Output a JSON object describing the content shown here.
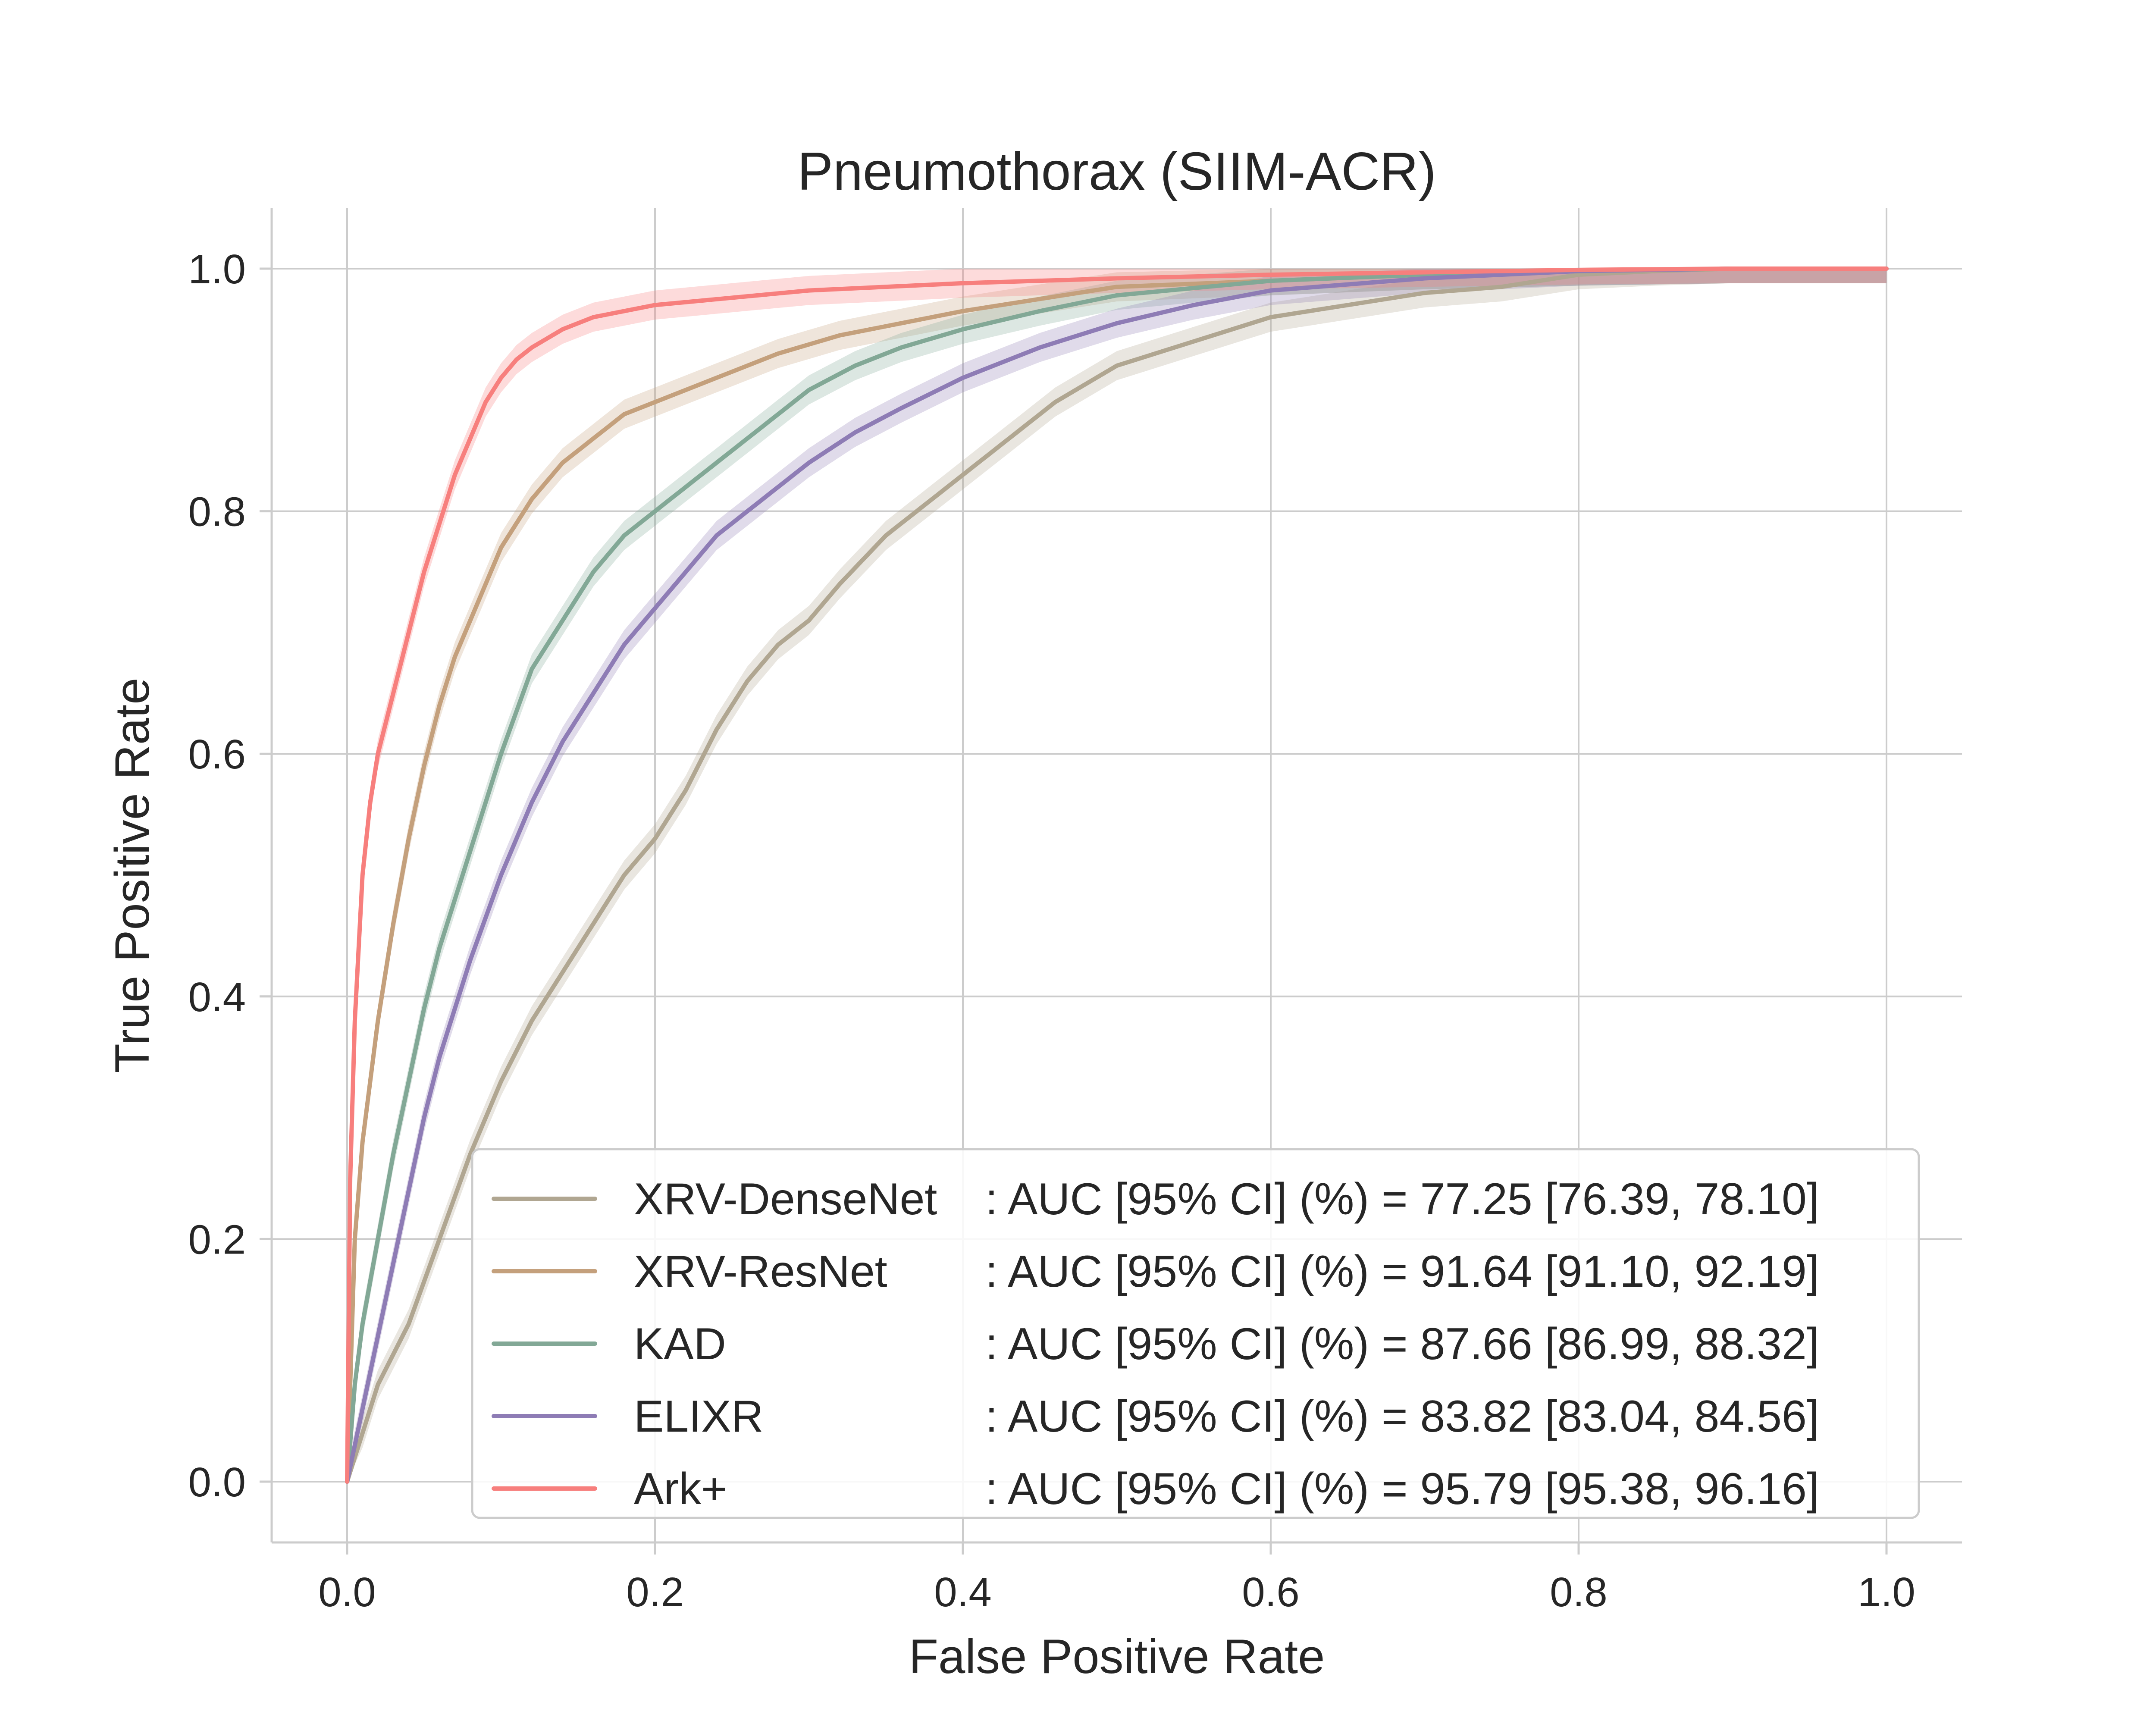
{
  "chart_data": {
    "type": "line",
    "title": "Pneumothorax (SIIM-ACR)",
    "xlabel": "False Positive Rate",
    "ylabel": "True Positive Rate",
    "xlim": [
      -0.05,
      1.05
    ],
    "ylim": [
      -0.05,
      1.05
    ],
    "xticks": [
      "0.0",
      "0.2",
      "0.4",
      "0.6",
      "0.8",
      "1.0"
    ],
    "yticks": [
      "0.0",
      "0.2",
      "0.4",
      "0.6",
      "0.8",
      "1.0"
    ],
    "grid": true,
    "legend_position": "lower-right",
    "series": [
      {
        "name": "XRV-DenseNet",
        "metric": ": AUC [95% CI] (%) = 77.25 [76.39, 78.10]",
        "color": "#b0a691",
        "x": [
          0,
          0.01,
          0.02,
          0.04,
          0.06,
          0.08,
          0.1,
          0.12,
          0.14,
          0.16,
          0.18,
          0.2,
          0.22,
          0.24,
          0.26,
          0.28,
          0.3,
          0.32,
          0.35,
          0.38,
          0.4,
          0.43,
          0.46,
          0.5,
          0.55,
          0.6,
          0.65,
          0.7,
          0.75,
          0.8,
          0.85,
          0.9,
          0.95,
          1.0
        ],
        "y": [
          0,
          0.04,
          0.08,
          0.13,
          0.2,
          0.27,
          0.33,
          0.38,
          0.42,
          0.46,
          0.5,
          0.53,
          0.57,
          0.62,
          0.66,
          0.69,
          0.71,
          0.74,
          0.78,
          0.81,
          0.83,
          0.86,
          0.89,
          0.92,
          0.94,
          0.96,
          0.97,
          0.98,
          0.985,
          0.995,
          0.998,
          1.0,
          1.0,
          1.0
        ]
      },
      {
        "name": "XRV-ResNet",
        "metric": ": AUC [95% CI] (%) = 91.64 [91.10, 92.19]",
        "color": "#c4a07c",
        "x": [
          0,
          0.005,
          0.01,
          0.02,
          0.03,
          0.04,
          0.05,
          0.06,
          0.07,
          0.08,
          0.1,
          0.12,
          0.14,
          0.16,
          0.18,
          0.2,
          0.22,
          0.25,
          0.28,
          0.32,
          0.36,
          0.4,
          0.45,
          0.5,
          0.6,
          0.7,
          0.8,
          0.9,
          1.0
        ],
        "y": [
          0,
          0.2,
          0.28,
          0.38,
          0.46,
          0.53,
          0.59,
          0.64,
          0.68,
          0.71,
          0.77,
          0.81,
          0.84,
          0.86,
          0.88,
          0.89,
          0.9,
          0.915,
          0.93,
          0.945,
          0.955,
          0.965,
          0.975,
          0.985,
          0.99,
          0.995,
          0.998,
          1.0,
          1.0
        ]
      },
      {
        "name": "KAD",
        "metric": ": AUC [95% CI] (%) = 87.66 [86.99, 88.32]",
        "color": "#82a896",
        "x": [
          0,
          0.005,
          0.01,
          0.02,
          0.03,
          0.04,
          0.05,
          0.06,
          0.08,
          0.1,
          0.12,
          0.14,
          0.16,
          0.18,
          0.2,
          0.22,
          0.24,
          0.26,
          0.28,
          0.3,
          0.33,
          0.36,
          0.4,
          0.45,
          0.5,
          0.6,
          0.7,
          0.8,
          0.9,
          1.0
        ],
        "y": [
          0,
          0.08,
          0.13,
          0.2,
          0.27,
          0.33,
          0.39,
          0.44,
          0.52,
          0.6,
          0.67,
          0.71,
          0.75,
          0.78,
          0.8,
          0.82,
          0.84,
          0.86,
          0.88,
          0.9,
          0.92,
          0.935,
          0.95,
          0.965,
          0.978,
          0.99,
          0.995,
          0.998,
          1.0,
          1.0
        ]
      },
      {
        "name": "ELIXR",
        "metric": ": AUC [95% CI] (%) = 83.82 [83.04, 84.56]",
        "color": "#8e7cb5",
        "x": [
          0,
          0.01,
          0.02,
          0.03,
          0.04,
          0.05,
          0.06,
          0.08,
          0.1,
          0.12,
          0.14,
          0.16,
          0.18,
          0.2,
          0.22,
          0.24,
          0.26,
          0.28,
          0.3,
          0.33,
          0.36,
          0.4,
          0.45,
          0.5,
          0.55,
          0.6,
          0.7,
          0.8,
          0.9,
          1.0
        ],
        "y": [
          0,
          0.06,
          0.12,
          0.18,
          0.24,
          0.3,
          0.35,
          0.43,
          0.5,
          0.56,
          0.61,
          0.65,
          0.69,
          0.72,
          0.75,
          0.78,
          0.8,
          0.82,
          0.84,
          0.865,
          0.885,
          0.91,
          0.935,
          0.955,
          0.97,
          0.982,
          0.992,
          0.998,
          1.0,
          1.0
        ]
      },
      {
        "name": "Ark+",
        "metric": ": AUC [95% CI] (%) = 95.79 [95.38, 96.16]",
        "color": "#f77f7d",
        "x": [
          0,
          0.002,
          0.005,
          0.01,
          0.015,
          0.02,
          0.03,
          0.04,
          0.05,
          0.06,
          0.07,
          0.08,
          0.09,
          0.1,
          0.11,
          0.12,
          0.14,
          0.16,
          0.18,
          0.2,
          0.25,
          0.3,
          0.4,
          0.5,
          0.6,
          0.7,
          0.8,
          0.9,
          1.0
        ],
        "y": [
          0,
          0.25,
          0.38,
          0.5,
          0.56,
          0.6,
          0.65,
          0.7,
          0.75,
          0.79,
          0.83,
          0.86,
          0.89,
          0.91,
          0.925,
          0.935,
          0.95,
          0.96,
          0.965,
          0.97,
          0.976,
          0.982,
          0.988,
          0.992,
          0.995,
          0.997,
          0.999,
          1.0,
          1.0
        ]
      }
    ]
  }
}
